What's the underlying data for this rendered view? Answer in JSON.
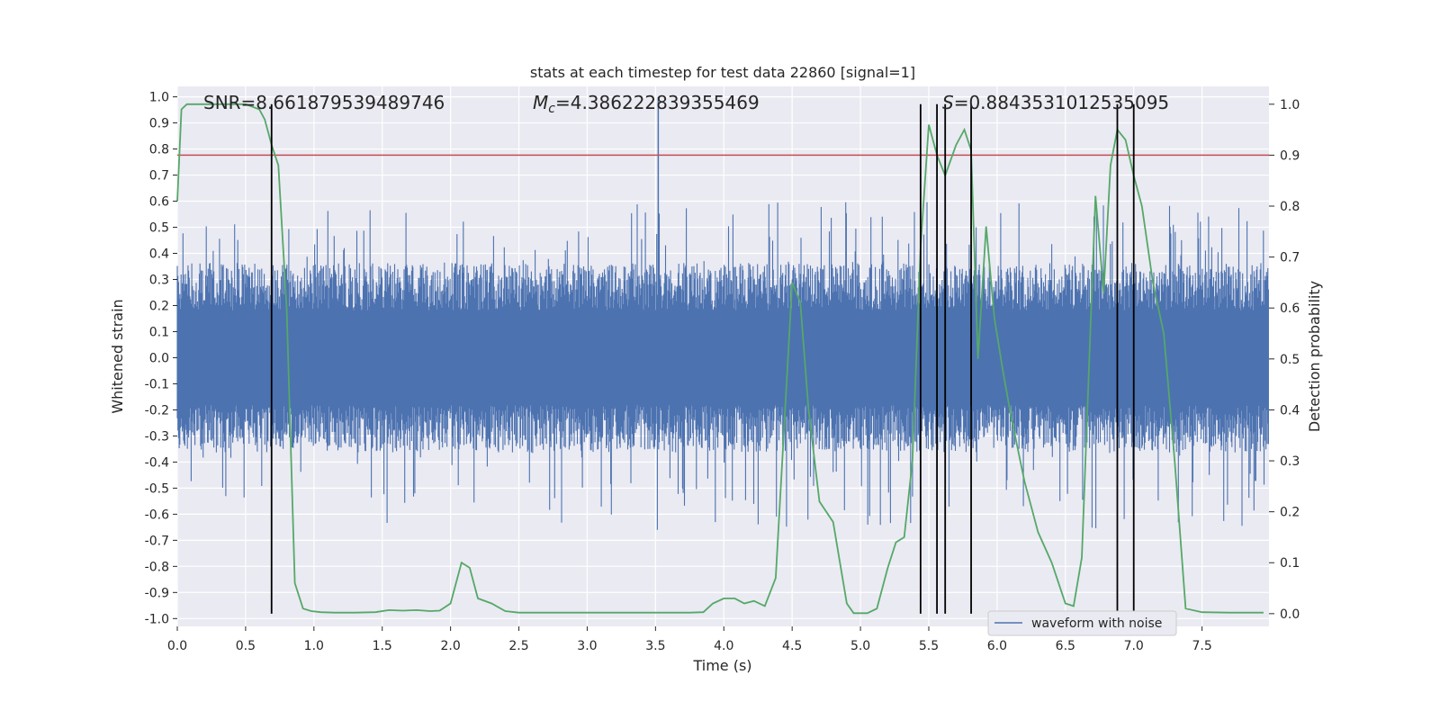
{
  "chart_data": {
    "type": "line",
    "title": "stats at each timestep for test data 22860 [signal=1]",
    "xlabel": "Time (s)",
    "ylabel_left": "Whitened strain",
    "ylabel_right": "Detection probability",
    "xlim": [
      0.0,
      7.99
    ],
    "ylim_left": [
      -1.03,
      1.04
    ],
    "ylim_right": [
      -0.025,
      1.035
    ],
    "x_ticks": [
      "0.0",
      "0.5",
      "1.0",
      "1.5",
      "2.0",
      "2.5",
      "3.0",
      "3.5",
      "4.0",
      "4.5",
      "5.0",
      "5.5",
      "6.0",
      "6.5",
      "7.0",
      "7.5"
    ],
    "y_left_ticks": [
      "1.0",
      "0.9",
      "0.8",
      "0.7",
      "0.6",
      "0.5",
      "0.4",
      "0.3",
      "0.2",
      "0.1",
      "0.0",
      "-0.1",
      "-0.2",
      "-0.3",
      "-0.4",
      "-0.5",
      "-0.6",
      "-0.7",
      "-0.8",
      "-0.9",
      "-1.0"
    ],
    "y_right_ticks": [
      "1.0",
      "0.9",
      "0.8",
      "0.7",
      "0.6",
      "0.5",
      "0.4",
      "0.3",
      "0.2",
      "0.1",
      "0.0"
    ],
    "grid": true,
    "legend": {
      "position": "lower-right",
      "entries": [
        "waveform with noise"
      ]
    },
    "annotations": {
      "snr": "SNR=8.661879539489746",
      "mc_symbol": "M",
      "mc_sub": "c",
      "mc_value": "=4.386222839355469",
      "s_symbol": "S",
      "s_value": "=0.8843531012535095"
    },
    "threshold": {
      "y_right": 0.9
    },
    "detection_markers_x": [
      0.69,
      5.44,
      5.56,
      5.62,
      5.81,
      6.88,
      7.0
    ],
    "series": [
      {
        "name": "waveform with noise",
        "color": "#4c72b0",
        "axis": "left",
        "kind": "dense_noise_envelope",
        "core_amplitude": 0.33,
        "peak_envelope": 0.6,
        "max_spike": {
          "x": 3.52,
          "y": 1.0
        }
      },
      {
        "axis": "right",
        "color": "#55a868",
        "x": [
          0.0,
          0.03,
          0.07,
          0.12,
          0.2,
          0.3,
          0.4,
          0.5,
          0.6,
          0.64,
          0.69,
          0.74,
          0.8,
          0.86,
          0.92,
          0.98,
          1.05,
          1.15,
          1.3,
          1.45,
          1.55,
          1.65,
          1.75,
          1.85,
          1.92,
          2.0,
          2.08,
          2.14,
          2.2,
          2.3,
          2.4,
          2.5,
          2.75,
          3.0,
          3.25,
          3.5,
          3.75,
          3.85,
          3.92,
          4.0,
          4.08,
          4.15,
          4.22,
          4.3,
          4.38,
          4.44,
          4.5,
          4.56,
          4.62,
          4.7,
          4.8,
          4.9,
          4.95,
          5.0,
          5.05,
          5.12,
          5.2,
          5.26,
          5.32,
          5.38,
          5.44,
          5.5,
          5.56,
          5.62,
          5.7,
          5.76,
          5.81,
          5.86,
          5.92,
          5.98,
          6.04,
          6.1,
          6.2,
          6.3,
          6.4,
          6.5,
          6.56,
          6.62,
          6.72,
          6.78,
          6.83,
          6.88,
          6.94,
          7.0,
          7.06,
          7.14,
          7.22,
          7.3,
          7.38,
          7.5,
          7.7,
          7.9,
          7.95
        ],
        "y": [
          0.81,
          0.99,
          1.0,
          1.0,
          1.0,
          1.0,
          1.0,
          1.0,
          0.99,
          0.97,
          0.92,
          0.88,
          0.6,
          0.06,
          0.01,
          0.005,
          0.003,
          0.002,
          0.002,
          0.003,
          0.007,
          0.006,
          0.007,
          0.005,
          0.006,
          0.02,
          0.1,
          0.09,
          0.03,
          0.02,
          0.005,
          0.002,
          0.002,
          0.002,
          0.002,
          0.002,
          0.002,
          0.003,
          0.02,
          0.03,
          0.03,
          0.02,
          0.025,
          0.015,
          0.07,
          0.36,
          0.65,
          0.61,
          0.4,
          0.22,
          0.18,
          0.02,
          0.001,
          0.001,
          0.001,
          0.01,
          0.09,
          0.14,
          0.15,
          0.3,
          0.72,
          0.96,
          0.9,
          0.86,
          0.92,
          0.95,
          0.91,
          0.5,
          0.76,
          0.58,
          0.48,
          0.39,
          0.26,
          0.16,
          0.1,
          0.02,
          0.015,
          0.11,
          0.82,
          0.63,
          0.88,
          0.95,
          0.93,
          0.86,
          0.8,
          0.65,
          0.55,
          0.3,
          0.01,
          0.003,
          0.002,
          0.002,
          0.002
        ]
      }
    ]
  }
}
